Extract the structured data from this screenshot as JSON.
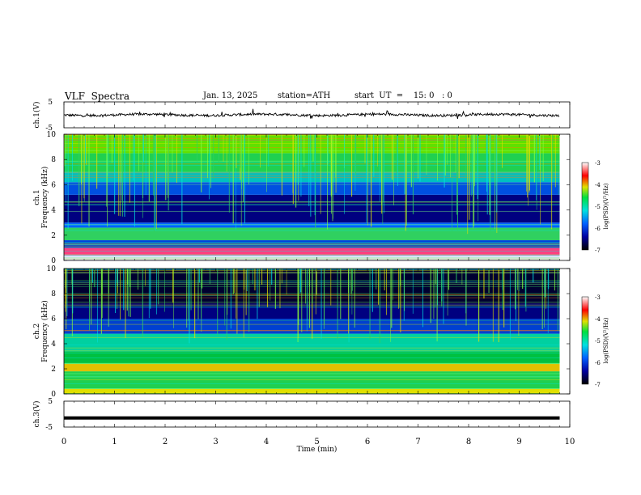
{
  "header": {
    "title": "VLF  Spectra",
    "date": "Jan. 13, 2025",
    "station": "station=ATH",
    "start_ut": "start  UT  =    15: 0   : 0"
  },
  "chart_data": [
    {
      "type": "line",
      "id": "ch1",
      "ylabel": "ch.1(V)",
      "ylim": [
        -5,
        5
      ],
      "y_ticks": [
        "5",
        "-5"
      ],
      "description_level": 0.0
    },
    {
      "type": "heatmap",
      "id": "ch1-spec",
      "ylabel": "ch.1\nFrequency (kHz)",
      "ylabel_line1": "ch.1",
      "ylabel_line2": "Frequency  (kHz)",
      "ylim": [
        0,
        10
      ],
      "y_ticks": [
        "0",
        "2",
        "4",
        "6",
        "8",
        "10"
      ],
      "colorbar": {
        "label": "log(PSD)(V²/Hz)",
        "range": [
          -7,
          -3
        ],
        "ticks": [
          "-3",
          "-4",
          "-5",
          "-6",
          "-7"
        ]
      }
    },
    {
      "type": "heatmap",
      "id": "ch2-spec",
      "ylabel_line1": "ch.2",
      "ylabel_line2": "Frequency  (kHz)",
      "ylim": [
        0,
        10
      ],
      "y_ticks": [
        "0",
        "2",
        "4",
        "6",
        "8",
        "10"
      ],
      "colorbar": {
        "label": "log(PSD)(V²/Hz)",
        "range": [
          -7,
          -3
        ],
        "ticks": [
          "-3",
          "-4",
          "-5",
          "-6",
          "-7"
        ]
      }
    },
    {
      "type": "line",
      "id": "ch3",
      "ylabel": "ch.3(V)",
      "ylim": [
        -5,
        5
      ],
      "y_ticks": [
        "5",
        "-5"
      ],
      "level": -1.5
    }
  ],
  "x_axis": {
    "label": "Time  (min)",
    "xlim": [
      0,
      10
    ],
    "ticks": [
      "0",
      "1",
      "2",
      "3",
      "4",
      "5",
      "6",
      "7",
      "8",
      "9",
      "10"
    ]
  },
  "colors": {
    "spectro_low": "#000060",
    "spectro_mid": "#00c060",
    "spectro_high": "#ff0000",
    "trace": "#000000"
  }
}
